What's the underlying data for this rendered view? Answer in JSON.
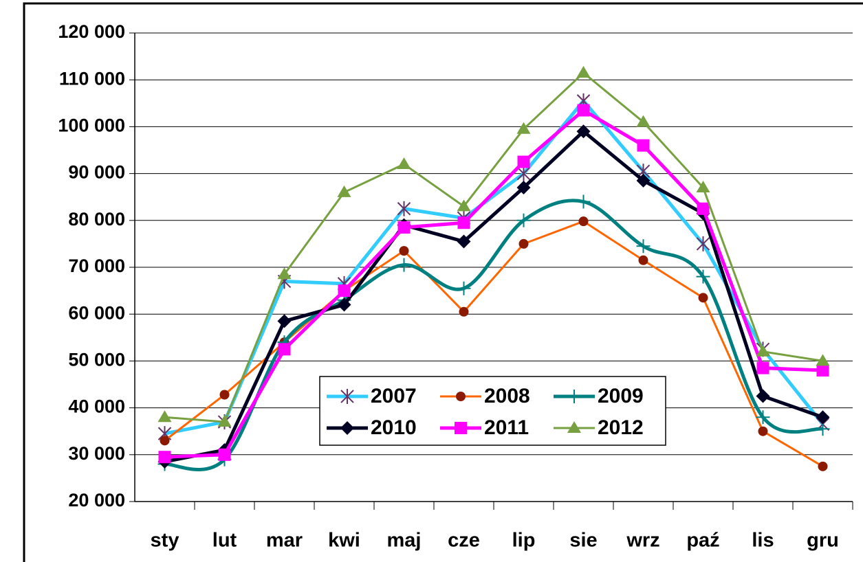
{
  "chart_data": {
    "type": "line",
    "categories": [
      "sty",
      "lut",
      "mar",
      "kwi",
      "maj",
      "cze",
      "lip",
      "sie",
      "wrz",
      "paź",
      "lis",
      "gru"
    ],
    "series": [
      {
        "name": "2007",
        "color": "#33ccff",
        "marker": "asterisk",
        "values": [
          34500,
          37000,
          67000,
          66500,
          82500,
          80500,
          90000,
          105500,
          90500,
          75000,
          52500,
          36500
        ]
      },
      {
        "name": "2008",
        "color": "#ff6600",
        "marker": "circle",
        "values": [
          33000,
          42800,
          54000,
          65000,
          73500,
          60500,
          75000,
          79800,
          71500,
          63500,
          35000,
          27500
        ]
      },
      {
        "name": "2009",
        "color": "#008080",
        "marker": "plus",
        "smooth": true,
        "values": [
          28000,
          29000,
          54000,
          63000,
          70500,
          65500,
          80000,
          84000,
          74500,
          68000,
          38000,
          35500
        ]
      },
      {
        "name": "2010",
        "color": "#000022",
        "marker": "diamond",
        "values": [
          28500,
          31000,
          58500,
          62000,
          79000,
          75500,
          87000,
          99000,
          88500,
          81500,
          42500,
          38000
        ]
      },
      {
        "name": "2011",
        "color": "#ff00ff",
        "marker": "square",
        "values": [
          29500,
          30000,
          52500,
          65000,
          78500,
          79500,
          92500,
          103500,
          96000,
          82500,
          48500,
          48000
        ]
      },
      {
        "name": "2012",
        "color": "#77a040",
        "marker": "triangle",
        "values": [
          38000,
          37000,
          68500,
          86000,
          92000,
          83000,
          99500,
          111500,
          101000,
          87000,
          52000,
          50000
        ]
      }
    ],
    "ylim": [
      20000,
      120000
    ],
    "yticks": [
      {
        "value": 20000,
        "label": "20 000"
      },
      {
        "value": 30000,
        "label": "30 000"
      },
      {
        "value": 40000,
        "label": "40 000"
      },
      {
        "value": 50000,
        "label": "50 000"
      },
      {
        "value": 60000,
        "label": "60 000"
      },
      {
        "value": 70000,
        "label": "70 000"
      },
      {
        "value": 80000,
        "label": "80 000"
      },
      {
        "value": 90000,
        "label": "90 000"
      },
      {
        "value": 100000,
        "label": "100 000"
      },
      {
        "value": 110000,
        "label": "110 000"
      },
      {
        "value": 120000,
        "label": "120 000"
      }
    ],
    "grid": true
  }
}
